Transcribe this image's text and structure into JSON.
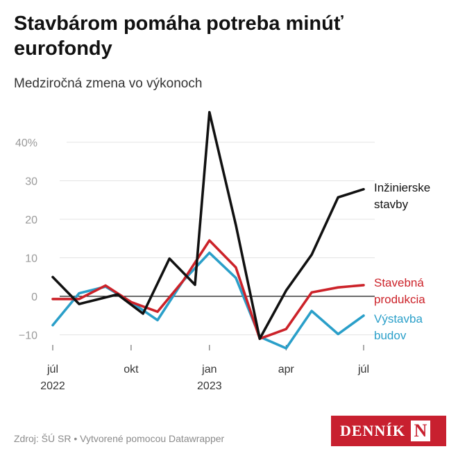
{
  "header": {
    "title": "Stavbárom pomáha potreba minúť eurofondy",
    "subtitle": "Medziročná zmena vo výkonoch"
  },
  "footer": {
    "source": "Zdroj: ŠÚ SR • Vytvorené pomocou Datawrapper"
  },
  "logo": {
    "text": "DENNÍK",
    "mark": "N",
    "color": "#c8202f"
  },
  "chart_data": {
    "type": "line",
    "title": "Stavbárom pomáha potreba minúť eurofondy",
    "subtitle": "Medziročná zmena vo výkonoch",
    "x": [
      "2022-07",
      "2022-08",
      "2022-09",
      "2022-10",
      "2022-11",
      "2022-12",
      "2023-01",
      "2023-02",
      "2023-03",
      "2023-04",
      "2023-05",
      "2023-06",
      "2023-07"
    ],
    "x_ticks": [
      {
        "label": "júl",
        "year": "2022",
        "at": "2022-07"
      },
      {
        "label": "okt",
        "year": "",
        "at": "2022-10"
      },
      {
        "label": "jan",
        "year": "2023",
        "at": "2023-01"
      },
      {
        "label": "apr",
        "year": "",
        "at": "2023-04"
      },
      {
        "label": "júl",
        "year": "",
        "at": "2023-07"
      }
    ],
    "y_ticks": [
      {
        "value": 40,
        "label": "40%"
      },
      {
        "value": 30,
        "label": "30"
      },
      {
        "value": 20,
        "label": "20"
      },
      {
        "value": 10,
        "label": "10"
      },
      {
        "value": 0,
        "label": "0"
      },
      {
        "value": -10,
        "label": "−10"
      }
    ],
    "ylim": [
      -14,
      50
    ],
    "grid": true,
    "series": [
      {
        "name": "Inžinierske stavby",
        "label_lines": [
          "Inžinierske",
          "stavby"
        ],
        "color": "#111111",
        "x": [
          "2022-07-01",
          "2022-08-01",
          "2022-09-15",
          "2022-10-15",
          "2022-11-15",
          "2022-12-15",
          "2023-01-01",
          "2023-02-01",
          "2023-03-01",
          "2023-04-01",
          "2023-05-01",
          "2023-06-01",
          "2023-07-01"
        ],
        "values": [
          5.0,
          -2.0,
          0.5,
          -4.5,
          9.8,
          3.0,
          47.8,
          18.5,
          -11.0,
          1.5,
          10.8,
          25.7,
          27.8
        ]
      },
      {
        "name": "Stavebná produkcia",
        "label_lines": [
          "Stavebná",
          "produkcia"
        ],
        "color": "#cc2229",
        "x": [
          "2022-07-01",
          "2022-08-01",
          "2022-09-01",
          "2022-10-01",
          "2022-11-01",
          "2022-12-01",
          "2023-01-01",
          "2023-02-01",
          "2023-03-01",
          "2023-04-01",
          "2023-05-01",
          "2023-06-01",
          "2023-07-01"
        ],
        "values": [
          -0.7,
          -0.7,
          2.8,
          -1.5,
          -4.0,
          4.0,
          14.5,
          7.5,
          -11.0,
          -8.5,
          1.0,
          2.3,
          2.9
        ]
      },
      {
        "name": "Výstavba budov",
        "label_lines": [
          "Výstavba",
          "budov"
        ],
        "color": "#2a9fc9",
        "x": [
          "2022-07-01",
          "2022-08-01",
          "2022-09-01",
          "2022-10-01",
          "2022-11-01",
          "2022-12-01",
          "2023-01-01",
          "2023-02-01",
          "2023-03-01",
          "2023-04-01",
          "2023-05-01",
          "2023-06-01",
          "2023-07-01"
        ],
        "values": [
          -7.5,
          0.8,
          2.5,
          -1.5,
          -6.2,
          4.0,
          11.3,
          4.8,
          -10.5,
          -13.5,
          -3.8,
          -9.8,
          -5.0
        ]
      }
    ]
  }
}
